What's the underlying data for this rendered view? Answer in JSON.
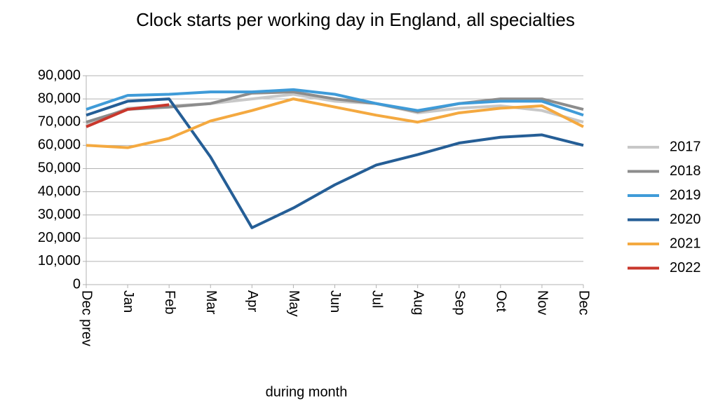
{
  "chart_data": {
    "type": "line",
    "title": "Clock starts per working day in England, all specialties",
    "x_label": "during  month",
    "categories": [
      "Dec prev",
      "Jan",
      "Feb",
      "Mar",
      "Apr",
      "May",
      "Jun",
      "Jul",
      "Aug",
      "Sep",
      "Oct",
      "Nov",
      "Dec"
    ],
    "series": [
      {
        "name": "2017",
        "color": "#c8c8c8",
        "values": [
          69000,
          76000,
          77000,
          78000,
          80000,
          82000,
          79000,
          78000,
          74000,
          76000,
          77000,
          75000,
          70000
        ]
      },
      {
        "name": "2018",
        "color": "#8c8c8c",
        "values": [
          70000,
          75500,
          76500,
          78000,
          82500,
          83000,
          80000,
          78000,
          74500,
          78000,
          80000,
          80000,
          75500
        ]
      },
      {
        "name": "2019",
        "color": "#3f9bd8",
        "values": [
          75500,
          81500,
          82000,
          83000,
          83000,
          84000,
          82000,
          78000,
          75000,
          78000,
          79000,
          79000,
          73000
        ]
      },
      {
        "name": "2020",
        "color": "#255e96",
        "values": [
          73000,
          79000,
          80000,
          55000,
          24500,
          33000,
          43000,
          51500,
          56000,
          61000,
          63500,
          64500,
          60000
        ]
      },
      {
        "name": "2021",
        "color": "#f4a940",
        "values": [
          60000,
          59000,
          63000,
          70500,
          75000,
          80000,
          76500,
          73000,
          70000,
          74000,
          76000,
          77000,
          68000
        ]
      },
      {
        "name": "2022",
        "color": "#c9372c",
        "values": [
          68000,
          75500,
          77500,
          null,
          null,
          null,
          null,
          null,
          null,
          null,
          null,
          null,
          null
        ]
      }
    ],
    "ylim": [
      0,
      90000
    ],
    "yticks": [
      0,
      {
        "value": 10000,
        "label": "10,000"
      },
      {
        "value": 20000,
        "label": "20,000"
      },
      {
        "value": 30000,
        "label": "30,000"
      },
      {
        "value": 40000,
        "label": "40,000"
      },
      {
        "value": 50000,
        "label": "50,000"
      },
      {
        "value": 60000,
        "label": "60,000"
      },
      {
        "value": 70000,
        "label": "70,000"
      },
      {
        "value": 80000,
        "label": "80,000"
      },
      {
        "value": 90000,
        "label": "90,000"
      }
    ],
    "grid": true,
    "legend": "right"
  }
}
